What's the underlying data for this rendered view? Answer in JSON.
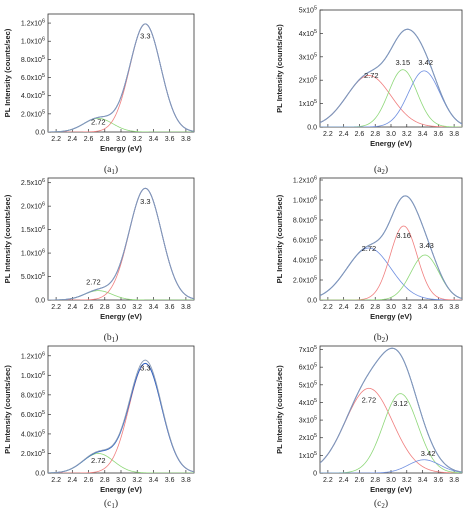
{
  "chart_data": [
    {
      "type": "line",
      "caption": {
        "main": "a",
        "sub": "1"
      },
      "xlabel": "Energy (eV)",
      "ylabel": "PL Intensity (counts/sec)",
      "xlim": [
        2.1,
        3.9
      ],
      "ylim": [
        0,
        1.3
      ],
      "x_ticks": [
        2.2,
        2.4,
        2.6,
        2.8,
        3.0,
        3.2,
        3.4,
        3.6,
        3.8
      ],
      "x_tick_labels": [
        "2.2",
        "2.4",
        "2.6",
        "2.8",
        "3.0",
        "3.2",
        "3.4",
        "3.6",
        "3.8"
      ],
      "y_ticks": [
        0,
        0.2,
        0.4,
        0.6,
        0.8,
        1.0,
        1.2
      ],
      "y_tick_labels": [
        {
          "m": "0.0",
          "e": ""
        },
        {
          "m": "2.0x10",
          "e": "5"
        },
        {
          "m": "4.0x10",
          "e": "5"
        },
        {
          "m": "6.0x10",
          "e": "5"
        },
        {
          "m": "8.0x10",
          "e": "5"
        },
        {
          "m": "1.0x10",
          "e": "6"
        },
        {
          "m": "1.2x10",
          "e": "6"
        }
      ],
      "grid": false,
      "peaks": [
        {
          "center": 2.72,
          "amplitude": 0.15,
          "sigma": 0.18,
          "color": "#8fd87a"
        },
        {
          "center": 3.3,
          "amplitude": 1.19,
          "sigma": 0.19,
          "color": "#f07f7f"
        }
      ],
      "sum_color": "#2b63c6",
      "data_color": "#8a9bb5",
      "data_offset": 0.0,
      "data_noise": 0.01,
      "annotations": [
        {
          "text": "3.3",
          "x": 3.3,
          "y": 1.03
        },
        {
          "text": "2.72",
          "x": 2.72,
          "y": 0.08
        }
      ]
    },
    {
      "type": "line",
      "caption": {
        "main": "a",
        "sub": "2"
      },
      "xlabel": "Energy (eV)",
      "ylabel": "PL Intensity (counts/sec)",
      "xlim": [
        2.1,
        3.9
      ],
      "ylim": [
        0,
        5
      ],
      "x_ticks": [
        2.2,
        2.4,
        2.6,
        2.8,
        3.0,
        3.2,
        3.4,
        3.6,
        3.8
      ],
      "x_tick_labels": [
        "2.2",
        "2.4",
        "2.6",
        "2.8",
        "3.0",
        "3.2",
        "3.4",
        "3.6",
        "3.8"
      ],
      "y_ticks": [
        0,
        1,
        2,
        3,
        4,
        5
      ],
      "y_tick_labels": [
        {
          "m": "0.0",
          "e": ""
        },
        {
          "m": "1x10",
          "e": "5"
        },
        {
          "m": "2x10",
          "e": "5"
        },
        {
          "m": "3x10",
          "e": "5"
        },
        {
          "m": "4x10",
          "e": "5"
        },
        {
          "m": "5x10",
          "e": "5"
        }
      ],
      "grid": false,
      "peaks": [
        {
          "center": 2.72,
          "amplitude": 2.2,
          "sigma": 0.28,
          "color": "#f07f7f"
        },
        {
          "center": 3.15,
          "amplitude": 2.45,
          "sigma": 0.18,
          "color": "#8fd87a"
        },
        {
          "center": 3.42,
          "amplitude": 2.4,
          "sigma": 0.2,
          "color": "#6f8fe0"
        }
      ],
      "sum_color": "#2b63c6",
      "data_color": "#8a9bb5",
      "data_offset": 0.0,
      "data_noise": 0.04,
      "annotations": [
        {
          "text": "2.72",
          "x": 2.75,
          "y": 2.1
        },
        {
          "text": "3.15",
          "x": 3.15,
          "y": 2.65
        },
        {
          "text": "3.42",
          "x": 3.44,
          "y": 2.65
        }
      ]
    },
    {
      "type": "line",
      "caption": {
        "main": "b",
        "sub": "1"
      },
      "xlabel": "Energy (eV)",
      "ylabel": "PL Intensity (counts/sec)",
      "xlim": [
        2.1,
        3.9
      ],
      "ylim": [
        0,
        2.6
      ],
      "x_ticks": [
        2.2,
        2.4,
        2.6,
        2.8,
        3.0,
        3.2,
        3.4,
        3.6,
        3.8
      ],
      "x_tick_labels": [
        "2.2",
        "2.4",
        "2.6",
        "2.8",
        "3.0",
        "3.2",
        "3.4",
        "3.6",
        "3.8"
      ],
      "y_ticks": [
        0,
        0.5,
        1.0,
        1.5,
        2.0,
        2.5
      ],
      "y_tick_labels": [
        {
          "m": "0.0",
          "e": ""
        },
        {
          "m": "5.0x10",
          "e": "5"
        },
        {
          "m": "1.0x10",
          "e": "6"
        },
        {
          "m": "1.5x10",
          "e": "6"
        },
        {
          "m": "2.0x10",
          "e": "6"
        },
        {
          "m": "2.5x10",
          "e": "6"
        }
      ],
      "grid": false,
      "peaks": [
        {
          "center": 2.72,
          "amplitude": 0.2,
          "sigma": 0.17,
          "color": "#8fd87a"
        },
        {
          "center": 3.3,
          "amplitude": 2.38,
          "sigma": 0.2,
          "color": "#f07f7f"
        }
      ],
      "sum_color": "#2b63c6",
      "data_color": "#8a9bb5",
      "data_offset": 0.0,
      "data_noise": 0.015,
      "annotations": [
        {
          "text": "3.3",
          "x": 3.3,
          "y": 2.05
        },
        {
          "text": "2.72",
          "x": 2.66,
          "y": 0.33
        }
      ]
    },
    {
      "type": "line",
      "caption": {
        "main": "b",
        "sub": "2"
      },
      "xlabel": "Energy (eV)",
      "ylabel": "PL Intensity (counts/sec)",
      "xlim": [
        2.1,
        3.9
      ],
      "ylim": [
        0,
        1.22
      ],
      "x_ticks": [
        2.2,
        2.4,
        2.6,
        2.8,
        3.0,
        3.2,
        3.4,
        3.6,
        3.8
      ],
      "x_tick_labels": [
        "2.2",
        "2.4",
        "2.6",
        "2.8",
        "3.0",
        "3.2",
        "3.4",
        "3.6",
        "3.8"
      ],
      "y_ticks": [
        0,
        0.2,
        0.4,
        0.6,
        0.8,
        1.0,
        1.2
      ],
      "y_tick_labels": [
        {
          "m": "0.0",
          "e": ""
        },
        {
          "m": "2.0x10",
          "e": "5"
        },
        {
          "m": "4.0x10",
          "e": "5"
        },
        {
          "m": "6.0x10",
          "e": "5"
        },
        {
          "m": "8.0x10",
          "e": "5"
        },
        {
          "m": "1.0x10",
          "e": "6"
        },
        {
          "m": "1.2x10",
          "e": "6"
        }
      ],
      "grid": false,
      "peaks": [
        {
          "center": 2.72,
          "amplitude": 0.52,
          "sigma": 0.28,
          "color": "#6f8fe0"
        },
        {
          "center": 3.16,
          "amplitude": 0.74,
          "sigma": 0.17,
          "color": "#f07f7f"
        },
        {
          "center": 3.43,
          "amplitude": 0.45,
          "sigma": 0.18,
          "color": "#8fd87a"
        }
      ],
      "sum_color": "#2b63c6",
      "data_color": "#8a9bb5",
      "data_offset": 0.0,
      "data_noise": 0.012,
      "annotations": [
        {
          "text": "2.72",
          "x": 2.72,
          "y": 0.49
        },
        {
          "text": "3.16",
          "x": 3.16,
          "y": 0.62
        },
        {
          "text": "3.43",
          "x": 3.45,
          "y": 0.52
        }
      ]
    },
    {
      "type": "line",
      "caption": {
        "main": "c",
        "sub": "1"
      },
      "xlabel": "Energy (eV)",
      "ylabel": "PL Intensity (counts/sec)",
      "xlim": [
        2.1,
        3.9
      ],
      "ylim": [
        0,
        1.3
      ],
      "x_ticks": [
        2.2,
        2.4,
        2.6,
        2.8,
        3.0,
        3.2,
        3.4,
        3.6,
        3.8
      ],
      "x_tick_labels": [
        "2.2",
        "2.4",
        "2.6",
        "2.8",
        "3.0",
        "3.2",
        "3.4",
        "3.6",
        "3.8"
      ],
      "y_ticks": [
        0,
        0.2,
        0.4,
        0.6,
        0.8,
        1.0,
        1.2
      ],
      "y_tick_labels": [
        {
          "m": "0.0",
          "e": ""
        },
        {
          "m": "2.0x10",
          "e": "5"
        },
        {
          "m": "4.0x10",
          "e": "5"
        },
        {
          "m": "6.0x10",
          "e": "5"
        },
        {
          "m": "8.0x10",
          "e": "5"
        },
        {
          "m": "1.0x10",
          "e": "6"
        },
        {
          "m": "1.2x10",
          "e": "6"
        }
      ],
      "grid": false,
      "peaks": [
        {
          "center": 2.72,
          "amplitude": 0.2,
          "sigma": 0.19,
          "color": "#8fd87a"
        },
        {
          "center": 3.3,
          "amplitude": 1.12,
          "sigma": 0.2,
          "color": "#f07f7f"
        }
      ],
      "sum_color": "#2b63c6",
      "data_color": "#8a9bb5",
      "data_offset": 0.03,
      "data_noise": 0.015,
      "annotations": [
        {
          "text": "3.3",
          "x": 3.3,
          "y": 1.05
        },
        {
          "text": "2.72",
          "x": 2.72,
          "y": 0.1
        }
      ]
    },
    {
      "type": "line",
      "caption": {
        "main": "c",
        "sub": "2"
      },
      "xlabel": "Energy (eV)",
      "ylabel": "PL Intensity (counts/sec)",
      "xlim": [
        2.1,
        3.9
      ],
      "ylim": [
        0,
        7.2
      ],
      "x_ticks": [
        2.2,
        2.4,
        2.6,
        2.8,
        3.0,
        3.2,
        3.4,
        3.6,
        3.8
      ],
      "x_tick_labels": [
        "2.2",
        "2.4",
        "2.6",
        "2.8",
        "3.0",
        "3.2",
        "3.4",
        "3.6",
        "3.8"
      ],
      "y_ticks": [
        0,
        1,
        2,
        3,
        4,
        5,
        6,
        7
      ],
      "y_tick_labels": [
        {
          "m": "0",
          "e": ""
        },
        {
          "m": "1x10",
          "e": "5"
        },
        {
          "m": "2x10",
          "e": "5"
        },
        {
          "m": "3x10",
          "e": "5"
        },
        {
          "m": "4x10",
          "e": "5"
        },
        {
          "m": "5x10",
          "e": "5"
        },
        {
          "m": "6x10",
          "e": "5"
        },
        {
          "m": "7x10",
          "e": "5"
        }
      ],
      "grid": false,
      "peaks": [
        {
          "center": 2.72,
          "amplitude": 4.8,
          "sigma": 0.3,
          "color": "#f07f7f"
        },
        {
          "center": 3.12,
          "amplitude": 4.5,
          "sigma": 0.22,
          "color": "#8fd87a"
        },
        {
          "center": 3.42,
          "amplitude": 0.75,
          "sigma": 0.2,
          "color": "#6f8fe0"
        }
      ],
      "sum_color": "#2b63c6",
      "data_color": "#8a9bb5",
      "data_offset": 0.0,
      "data_noise": 0.06,
      "annotations": [
        {
          "text": "2.72",
          "x": 2.72,
          "y": 4.0
        },
        {
          "text": "3.12",
          "x": 3.12,
          "y": 3.8
        },
        {
          "text": "3.42",
          "x": 3.47,
          "y": 0.95
        }
      ]
    }
  ]
}
